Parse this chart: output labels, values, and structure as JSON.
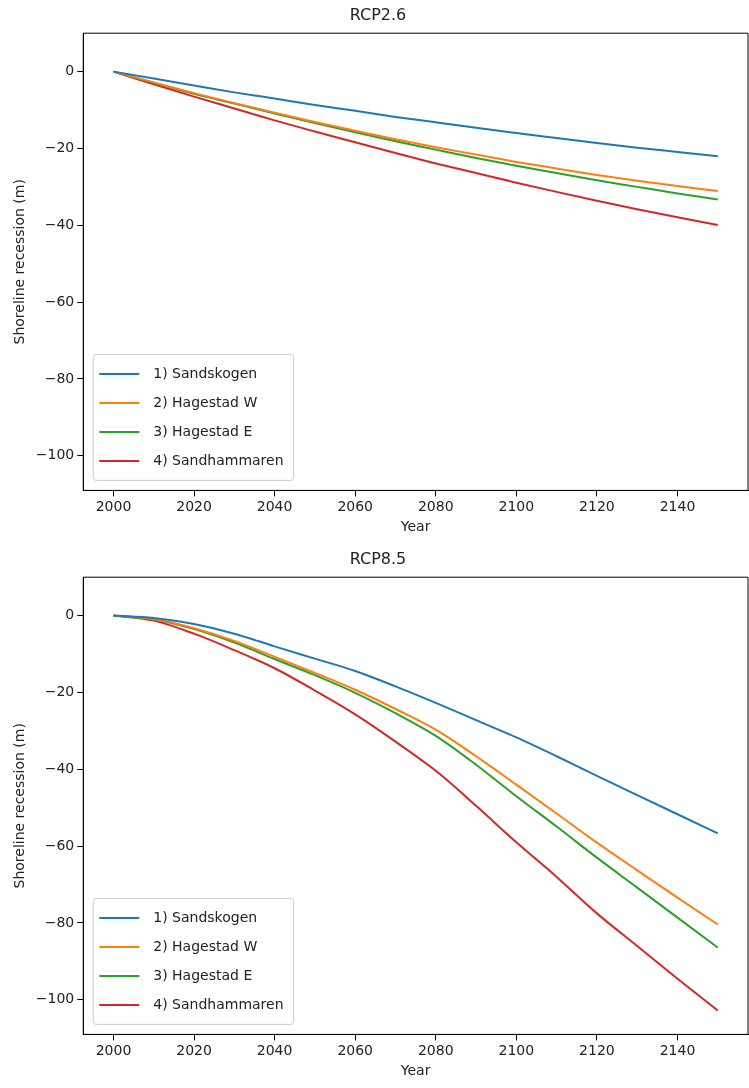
{
  "chart_data": [
    {
      "type": "line",
      "title": "RCP2.6",
      "xlabel": "Year",
      "ylabel": "Shoreline recession (m)",
      "x": [
        2000,
        2010,
        2020,
        2030,
        2040,
        2050,
        2060,
        2070,
        2080,
        2090,
        2100,
        2110,
        2120,
        2130,
        2140,
        2150
      ],
      "series": [
        {
          "name": "1) Sandskogen",
          "color": "#1f77b4",
          "values": [
            0,
            -1.8,
            -3.6,
            -5.4,
            -7.0,
            -8.7,
            -10.2,
            -11.8,
            -13.2,
            -14.6,
            -16.0,
            -17.3,
            -18.6,
            -19.8,
            -20.9,
            -22.0
          ]
        },
        {
          "name": "2) Hagestad W",
          "color": "#ff7f0e",
          "values": [
            0,
            -2.8,
            -5.6,
            -8.2,
            -10.7,
            -13.1,
            -15.4,
            -17.6,
            -19.7,
            -21.6,
            -23.5,
            -25.2,
            -26.9,
            -28.4,
            -29.8,
            -31.1
          ]
        },
        {
          "name": "3) Hagestad E",
          "color": "#2ca02c",
          "values": [
            0,
            -2.9,
            -5.8,
            -8.3,
            -10.9,
            -13.4,
            -15.8,
            -18.1,
            -20.3,
            -22.5,
            -24.5,
            -26.4,
            -28.3,
            -30.0,
            -31.7,
            -33.3
          ]
        },
        {
          "name": "4) Sandhammaren",
          "color": "#d62728",
          "values": [
            0,
            -3.3,
            -6.5,
            -9.6,
            -12.7,
            -15.6,
            -18.4,
            -21.2,
            -23.9,
            -26.4,
            -28.9,
            -31.3,
            -33.6,
            -35.8,
            -37.9,
            -39.9
          ]
        }
      ],
      "xlim": [
        1992.5,
        2157.5
      ],
      "ylim": [
        -109,
        10
      ],
      "xticks": [
        2000,
        2020,
        2040,
        2060,
        2080,
        2100,
        2120,
        2140
      ],
      "yticks": [
        0,
        -20,
        -40,
        -60,
        -80,
        -100
      ],
      "grid": false,
      "legend": "bottom left"
    },
    {
      "type": "line",
      "title": "RCP8.5",
      "xlabel": "Year",
      "ylabel": "Shoreline recession (m)",
      "x": [
        2000,
        2010,
        2020,
        2030,
        2040,
        2050,
        2060,
        2070,
        2080,
        2090,
        2100,
        2110,
        2120,
        2130,
        2140,
        2150
      ],
      "series": [
        {
          "name": "1) Sandskogen",
          "color": "#1f77b4",
          "values": [
            0,
            -0.6,
            -2.2,
            -4.7,
            -8.0,
            -11.2,
            -14.4,
            -18.4,
            -22.7,
            -27.2,
            -31.7,
            -36.6,
            -41.7,
            -46.7,
            -51.7,
            -56.7
          ]
        },
        {
          "name": "2) Hagestad W",
          "color": "#ff7f0e",
          "values": [
            0,
            -0.9,
            -3.3,
            -6.6,
            -10.7,
            -14.9,
            -19.3,
            -24.3,
            -29.7,
            -36.6,
            -44.0,
            -51.5,
            -59.1,
            -66.3,
            -73.4,
            -80.4
          ]
        },
        {
          "name": "3) Hagestad E",
          "color": "#2ca02c",
          "values": [
            0,
            -1.0,
            -3.5,
            -7.0,
            -11.3,
            -15.5,
            -20.1,
            -25.4,
            -31.3,
            -38.8,
            -47.0,
            -54.9,
            -63.0,
            -70.8,
            -78.6,
            -86.4
          ]
        },
        {
          "name": "4) Sandhammaren",
          "color": "#d62728",
          "values": [
            0,
            -1.3,
            -4.7,
            -9.0,
            -13.7,
            -19.5,
            -25.7,
            -32.8,
            -40.4,
            -49.5,
            -59.0,
            -68.0,
            -77.5,
            -86.0,
            -94.5,
            -102.8
          ]
        }
      ],
      "xlim": [
        1992.5,
        2157.5
      ],
      "ylim": [
        -109,
        10
      ],
      "xticks": [
        2000,
        2020,
        2040,
        2060,
        2080,
        2100,
        2120,
        2140
      ],
      "yticks": [
        0,
        -20,
        -40,
        -60,
        -80,
        -100
      ],
      "grid": false,
      "legend": "bottom left"
    }
  ]
}
